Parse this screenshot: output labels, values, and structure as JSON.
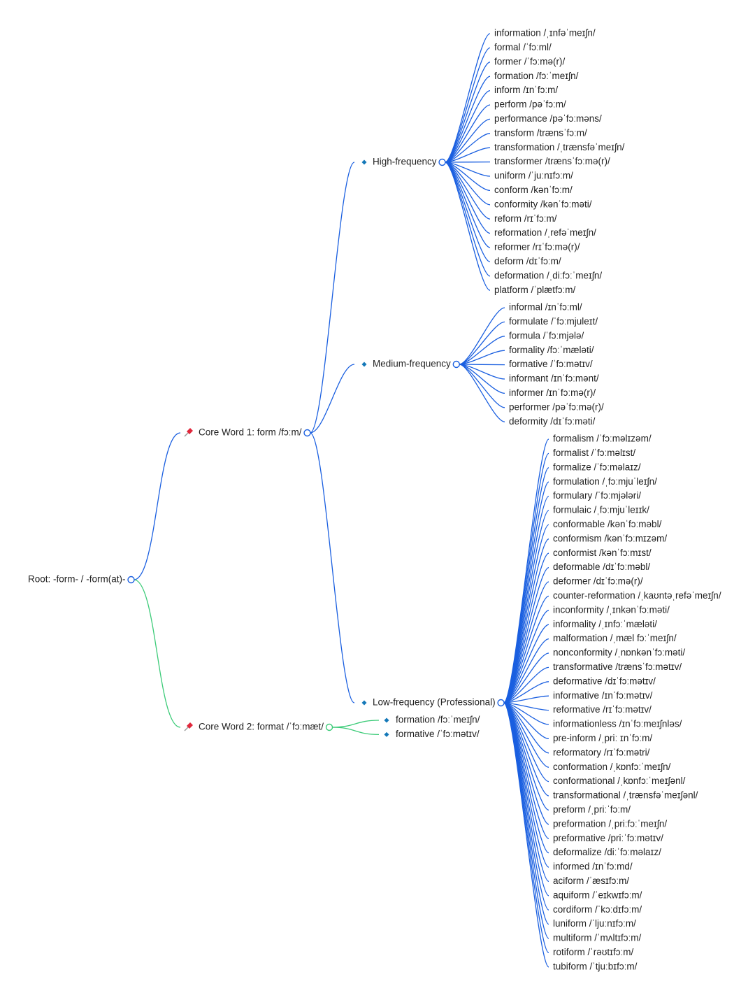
{
  "mind_map": {
    "root": "Root: -form- / -form(at)-",
    "branches": [
      {
        "label": "Core Word 1: form /fɔːm/",
        "groups": [
          {
            "label": "High-frequency",
            "items": [
              "information /ˌɪnfəˈmeɪʃn/",
              "formal /ˈfɔːml/",
              "former /ˈfɔːmə(r)/",
              "formation /fɔːˈmeɪʃn/",
              "inform /ɪnˈfɔːm/",
              "perform /pəˈfɔːm/",
              "performance /pəˈfɔːməns/",
              "transform /trænsˈfɔːm/",
              "transformation /ˌtrænsfəˈmeɪʃn/",
              "transformer /trænsˈfɔːmə(r)/",
              "uniform /ˈjuːnɪfɔːm/",
              "conform /kənˈfɔːm/",
              "conformity /kənˈfɔːməti/",
              "reform /rɪˈfɔːm/",
              "reformation /ˌrefəˈmeɪʃn/",
              "reformer /rɪˈfɔːmə(r)/",
              "deform /dɪˈfɔːm/",
              "deformation /ˌdiːfɔːˈmeɪʃn/",
              "platform /ˈplætfɔːm/"
            ]
          },
          {
            "label": "Medium-frequency",
            "items": [
              "informal /ɪnˈfɔːml/",
              "formulate /ˈfɔːmjuleɪt/",
              "formula /ˈfɔːmjələ/",
              "formality /fɔːˈmæləti/",
              "formative /ˈfɔːmətɪv/",
              "informant /ɪnˈfɔːmənt/",
              "informer /ɪnˈfɔːmə(r)/",
              "performer /pəˈfɔːmə(r)/",
              "deformity /dɪˈfɔːməti/"
            ]
          },
          {
            "label": "Low-frequency (Professional)",
            "items": [
              "formalism /ˈfɔːməlɪzəm/",
              "formalist /ˈfɔːməlɪst/",
              "formalize /ˈfɔːməlaɪz/",
              "formulation /ˌfɔːmjuˈleɪʃn/",
              "formulary /ˈfɔːmjələri/",
              "formulaic /ˌfɔːmjuˈleɪɪk/",
              "conformable /kənˈfɔːməbl/",
              "conformism /kənˈfɔːmɪzəm/",
              "conformist /kənˈfɔːmɪst/",
              "deformable /dɪˈfɔːməbl/",
              "deformer /dɪˈfɔːmə(r)/",
              "counter-reformation /ˌkaʊntəˌrefəˈmeɪʃn/",
              "inconformity /ˌɪnkənˈfɔːməti/",
              "informality /ˌɪnfɔːˈmæləti/",
              "malformation /ˌmæl fɔːˈmeɪʃn/",
              "nonconformity /ˌnɒnkənˈfɔːməti/",
              "transformative /trænsˈfɔːmətɪv/",
              "deformative /dɪˈfɔːmətɪv/",
              "informative /ɪnˈfɔːmətɪv/",
              "reformative /rɪˈfɔːmətɪv/",
              "informationless /ɪnˈfɔːmeɪʃnləs/",
              "pre-inform /ˌpriː ɪnˈfɔːm/",
              "reformatory /rɪˈfɔːmətri/",
              "conformation /ˌkɒnfɔːˈmeɪʃn/",
              "conformational /ˌkɒnfɔːˈmeɪʃənl/",
              "transformational /ˌtrænsfəˈmeɪʃənl/",
              "preform /ˌpriːˈfɔːm/",
              "preformation /ˌpriːfɔːˈmeɪʃn/",
              "preformative /priːˈfɔːmətɪv/",
              "deformalize /diːˈfɔːməlaɪz/",
              "informed /ɪnˈfɔːmd/",
              "aciform /ˈæsɪfɔːm/",
              "aquiform /ˈeɪkwɪfɔːm/",
              "cordiform /ˈkɔːdɪfɔːm/",
              "luniform /ˈljuːnɪfɔːm/",
              "multiform /ˈmʌltɪfɔːm/",
              "rotiform /ˈrəʊtɪfɔːm/",
              "tubiform /ˈtjuːbɪfɔːm/"
            ]
          }
        ]
      },
      {
        "label": "Core Word 2: format /ˈfɔːmæt/",
        "items": [
          "formation /fɔːˈmeɪʃn/",
          "formative /ˈfɔːmətɪv/"
        ]
      }
    ]
  }
}
